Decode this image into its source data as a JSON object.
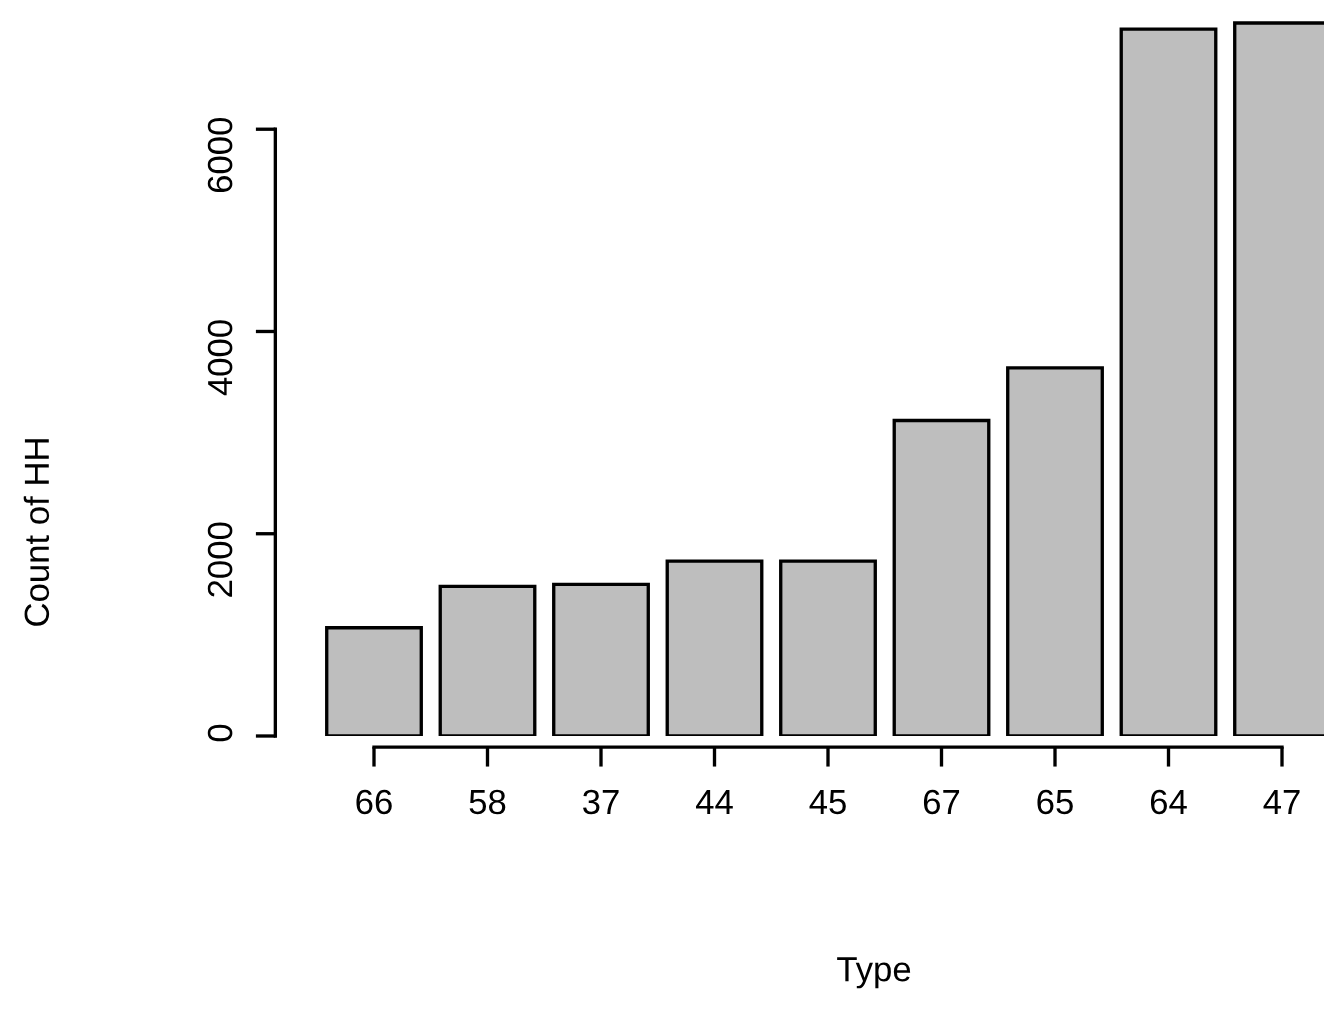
{
  "chart_data": {
    "type": "bar",
    "xlabel": "Type",
    "ylabel": "Count of HH",
    "categories": [
      "66",
      "58",
      "37",
      "44",
      "45",
      "67",
      "65",
      "64",
      "47"
    ],
    "values": [
      1070,
      1480,
      1500,
      1730,
      1730,
      3120,
      3640,
      6990,
      7050
    ],
    "color": "#bebebe",
    "ylim": [
      0,
      7080
    ],
    "yticks": [
      0,
      2000,
      4000,
      6000
    ],
    "grid": false
  }
}
